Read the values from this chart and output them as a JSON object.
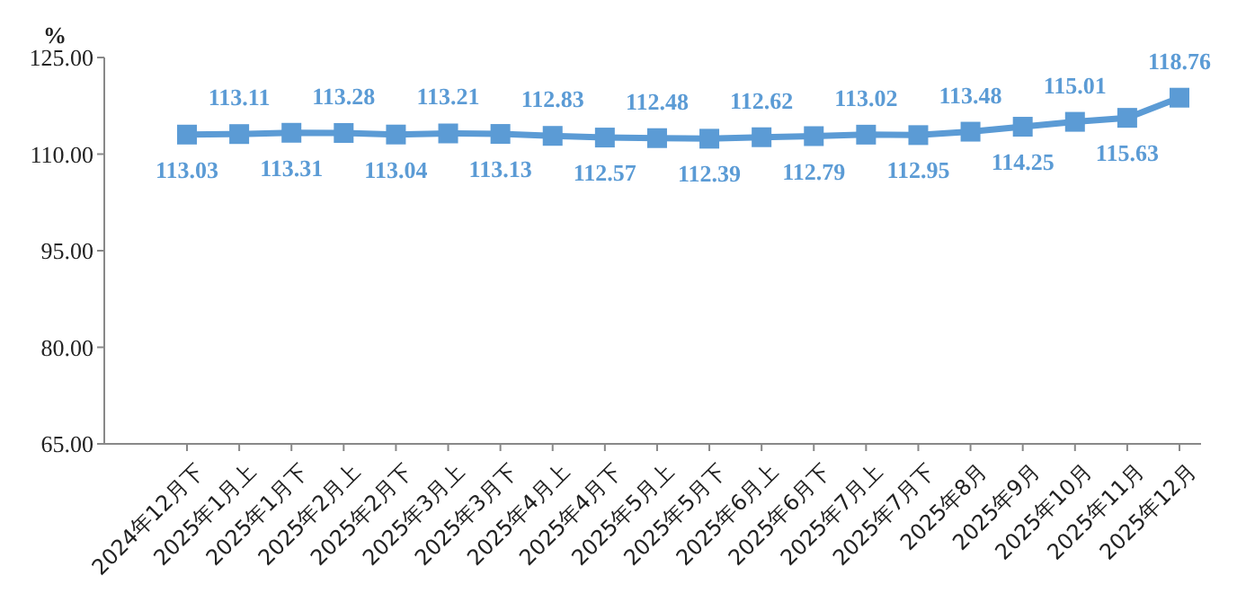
{
  "chart_data": {
    "type": "line",
    "ylabel": "%",
    "categories": [
      "2024年12月下",
      "2025年1月上",
      "2025年1月下",
      "2025年2月上",
      "2025年2月下",
      "2025年3月上",
      "2025年3月下",
      "2025年4月上",
      "2025年4月下",
      "2025年5月上",
      "2025年5月下",
      "2025年6月上",
      "2025年6月下",
      "2025年7月上",
      "2025年7月下",
      "2025年8月",
      "2025年9月",
      "2025年10月",
      "2025年11月",
      "2025年12月"
    ],
    "series": [
      {
        "color": "#5b9bd5",
        "values": [
          113.03,
          113.11,
          113.31,
          113.28,
          113.04,
          113.21,
          113.13,
          112.83,
          112.57,
          112.48,
          112.39,
          112.62,
          112.79,
          113.02,
          112.95,
          113.48,
          114.25,
          115.01,
          115.63,
          118.76
        ]
      }
    ],
    "ylim": [
      65,
      125
    ],
    "yticks": [
      {
        "value": 65,
        "label": "65.00"
      },
      {
        "value": 80,
        "label": "80.00"
      },
      {
        "value": 95,
        "label": "95.00"
      },
      {
        "value": 110,
        "label": "110.00"
      },
      {
        "value": 125,
        "label": "125.00"
      }
    ],
    "grid": false,
    "marker": "square",
    "line_style": "solid",
    "data_labels": true
  }
}
